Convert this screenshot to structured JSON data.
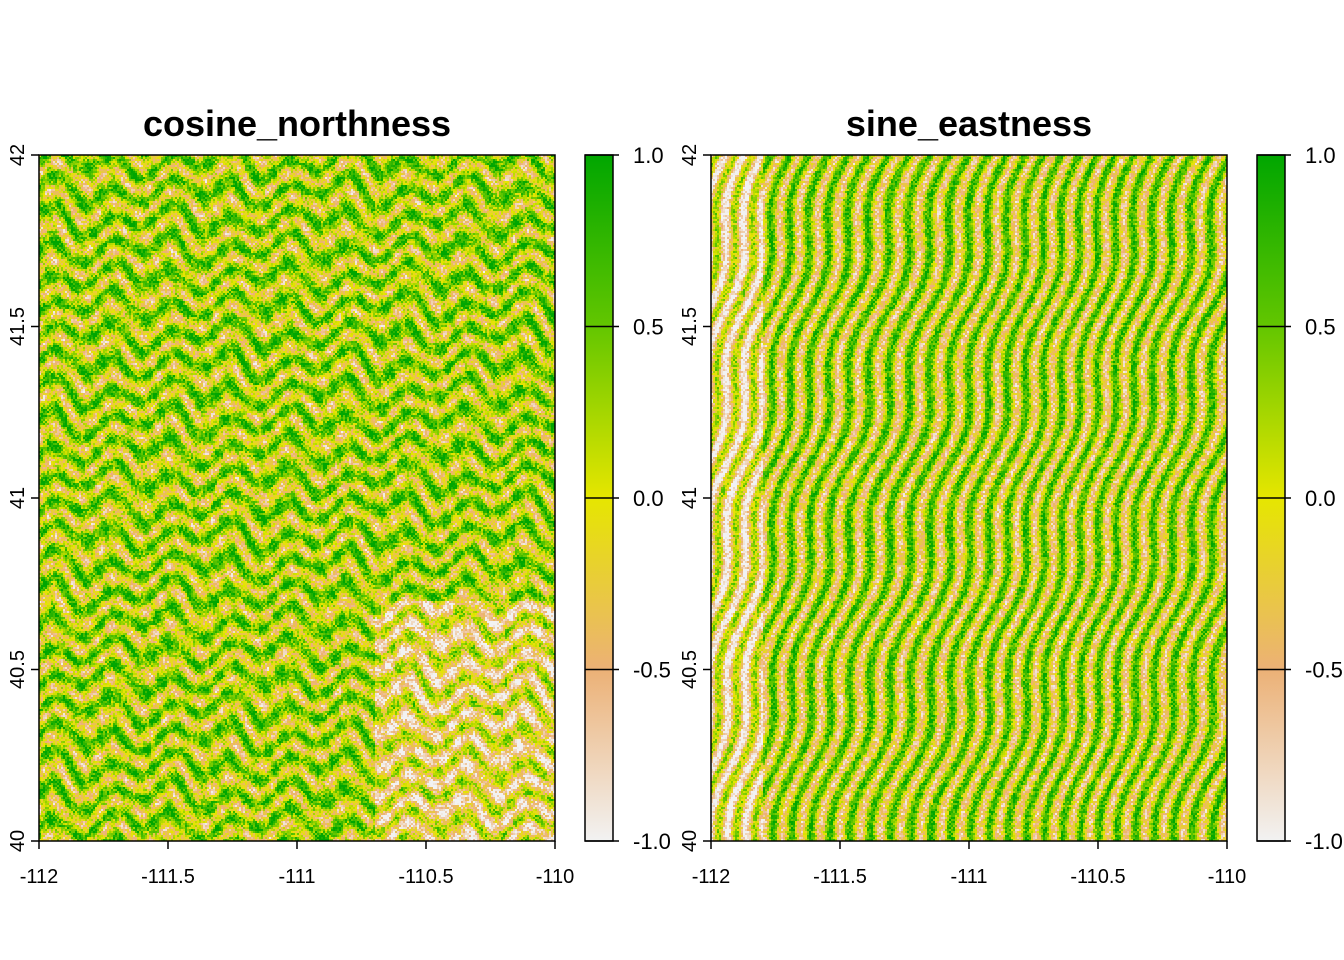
{
  "chart_data": [
    {
      "type": "heatmap",
      "title": "cosine_northness",
      "xlabel": "",
      "ylabel": "",
      "xlim": [
        -112,
        -110
      ],
      "ylim": [
        40,
        42
      ],
      "x_ticks": [
        -112,
        -111.5,
        -111,
        -110.5,
        -110
      ],
      "x_tick_labels": [
        "-112",
        "-111.5",
        "-111",
        "-110.5",
        "-110"
      ],
      "y_ticks": [
        40,
        40.5,
        41,
        41.5,
        42
      ],
      "y_tick_labels": [
        "40",
        "40.5",
        "41",
        "41.5",
        "42"
      ],
      "grid": false,
      "legend": {
        "placement": "right",
        "range": [
          -1.0,
          1.0
        ],
        "ticks": [
          -1.0,
          -0.5,
          0.0,
          0.5,
          1.0
        ],
        "tick_labels": [
          "-1.0",
          "-0.5",
          "0.0",
          "0.5",
          "1.0"
        ],
        "colors": [
          {
            "value": -1.0,
            "color": "#f2f2f2"
          },
          {
            "value": -0.5,
            "color": "#ecb176"
          },
          {
            "value": 0.0,
            "color": "#e6e600"
          },
          {
            "value": 0.5,
            "color": "#63c600"
          },
          {
            "value": 1.0,
            "color": "#00a600"
          }
        ]
      }
    },
    {
      "type": "heatmap",
      "title": "sine_eastness",
      "xlabel": "",
      "ylabel": "",
      "xlim": [
        -112,
        -110
      ],
      "ylim": [
        40,
        42
      ],
      "x_ticks": [
        -112,
        -111.5,
        -111,
        -110.5,
        -110
      ],
      "x_tick_labels": [
        "-112",
        "-111.5",
        "-111",
        "-110.5",
        "-110"
      ],
      "y_ticks": [
        40,
        40.5,
        41,
        41.5,
        42
      ],
      "y_tick_labels": [
        "40",
        "40.5",
        "41",
        "41.5",
        "42"
      ],
      "grid": false,
      "legend": {
        "placement": "right",
        "range": [
          -1.0,
          1.0
        ],
        "ticks": [
          -1.0,
          -0.5,
          0.0,
          0.5,
          1.0
        ],
        "tick_labels": [
          "-1.0",
          "-0.5",
          "0.0",
          "0.5",
          "1.0"
        ],
        "colors": [
          {
            "value": -1.0,
            "color": "#f2f2f2"
          },
          {
            "value": -0.5,
            "color": "#ecb176"
          },
          {
            "value": 0.0,
            "color": "#e6e600"
          },
          {
            "value": 0.5,
            "color": "#63c600"
          },
          {
            "value": 1.0,
            "color": "#00a600"
          }
        ]
      }
    }
  ]
}
